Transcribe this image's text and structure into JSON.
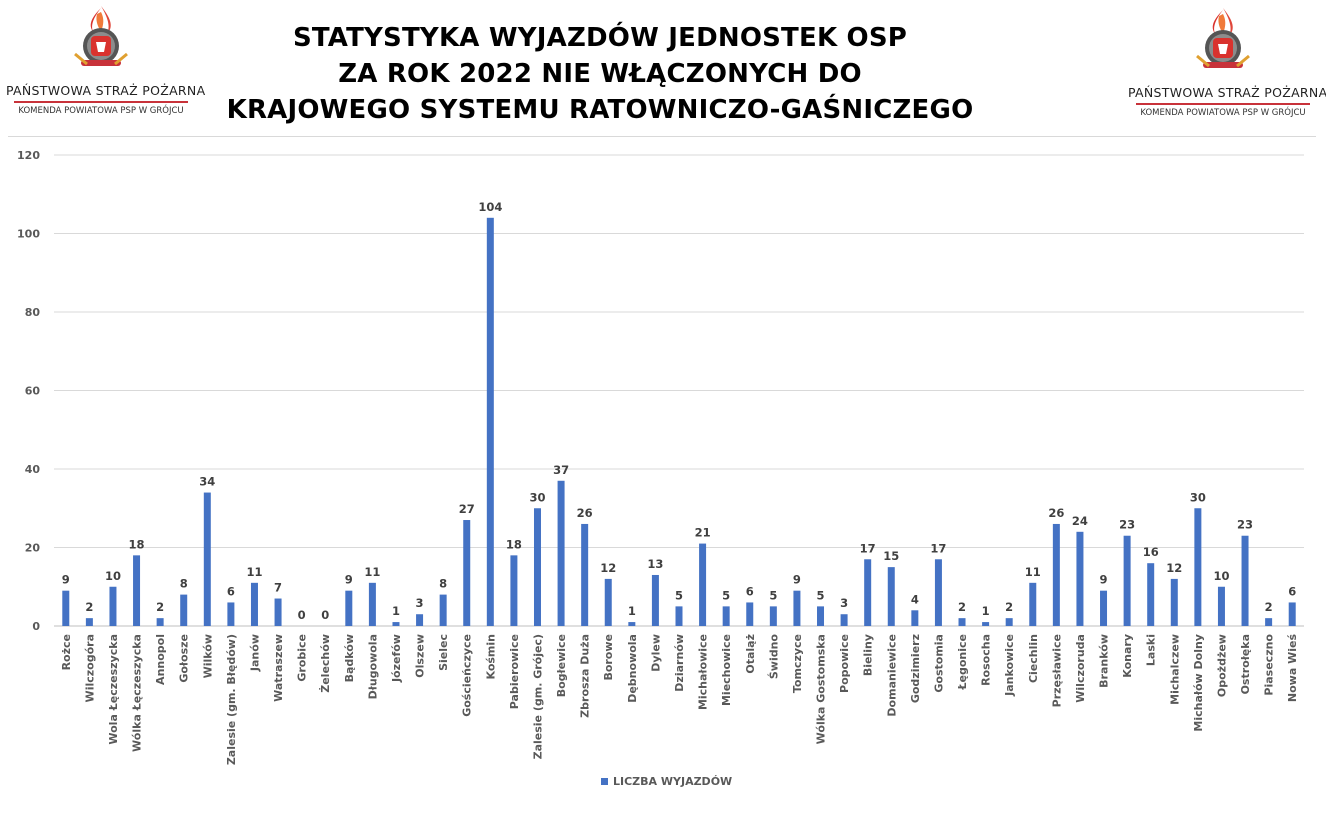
{
  "header": {
    "title_lines": [
      "STATYSTYKA WYJAZDÓW JEDNOSTEK OSP",
      "ZA ROK 2022 NIE WŁĄCZONYCH DO",
      "KRAJOWEGO SYSTEMU RATOWNICZO-GAŚNICZEGO"
    ],
    "logo": {
      "org": "PAŃSTWOWA STRAŻ POŻARNA",
      "sub": "KOMENDA POWIATOWA PSP W GRÓJCU",
      "icon": "psp-emblem-icon"
    }
  },
  "colors": {
    "bar": "#4472c4",
    "grid": "#d9d9d9",
    "label": "#404040",
    "accent": "#c8323a"
  },
  "chart_data": {
    "type": "bar",
    "title": "STATYSTYKA WYJAZDÓW JEDNOSTEK OSP ZA ROK 2022 NIE WŁĄCZONYCH DO KRAJOWEGO SYSTEMU RATOWNICZO-GAŚNICZEGO",
    "xlabel": "",
    "ylabel": "",
    "ylim": [
      0,
      120
    ],
    "yticks": [
      0,
      20,
      40,
      60,
      80,
      100,
      120
    ],
    "grid": true,
    "legend_position": "bottom",
    "categories": [
      "Rożce",
      "Wilczogóra",
      "Wola Łęczeszycka",
      "Wólka Łęczeszycka",
      "Annopol",
      "Gołosze",
      "Wilków",
      "Zalesie (gm. Błędów)",
      "Janów",
      "Watraszew",
      "Grobice",
      "Żelechów",
      "Bądków",
      "Długowola",
      "Józefów",
      "Olszew",
      "Sielec",
      "Gościeńczyce",
      "Kośmin",
      "Pabierowice",
      "Zalesie (gm. Grójec)",
      "Bogłewice",
      "Zbrosza Duża",
      "Borowe",
      "Dębnowola",
      "Dylew",
      "Dziarnów",
      "Michałowice",
      "Miechowice",
      "Otaląż",
      "Świdno",
      "Tomczyce",
      "Wólka Gostomska",
      "Popowice",
      "Bieliny",
      "Domaniewice",
      "Godzimierz",
      "Gostomia",
      "Łęgonice",
      "Rosocha",
      "Jankowice",
      "Ciechlin",
      "Przęsławice",
      "Wilczoruda",
      "Branków",
      "Konary",
      "Laski",
      "Michalczew",
      "Michałów Dolny",
      "Opożdżew",
      "Ostrołęka",
      "Piaseczno",
      "Nowa Wieś"
    ],
    "series": [
      {
        "name": "LICZBA WYJAZDÓW",
        "values": [
          9,
          2,
          10,
          18,
          2,
          8,
          34,
          6,
          11,
          7,
          0,
          0,
          9,
          11,
          1,
          3,
          8,
          27,
          104,
          18,
          30,
          37,
          26,
          12,
          1,
          13,
          5,
          21,
          5,
          6,
          5,
          9,
          5,
          3,
          17,
          15,
          4,
          17,
          2,
          1,
          2,
          11,
          26,
          24,
          9,
          23,
          16,
          12,
          30,
          10,
          23,
          2,
          6
        ]
      }
    ]
  }
}
